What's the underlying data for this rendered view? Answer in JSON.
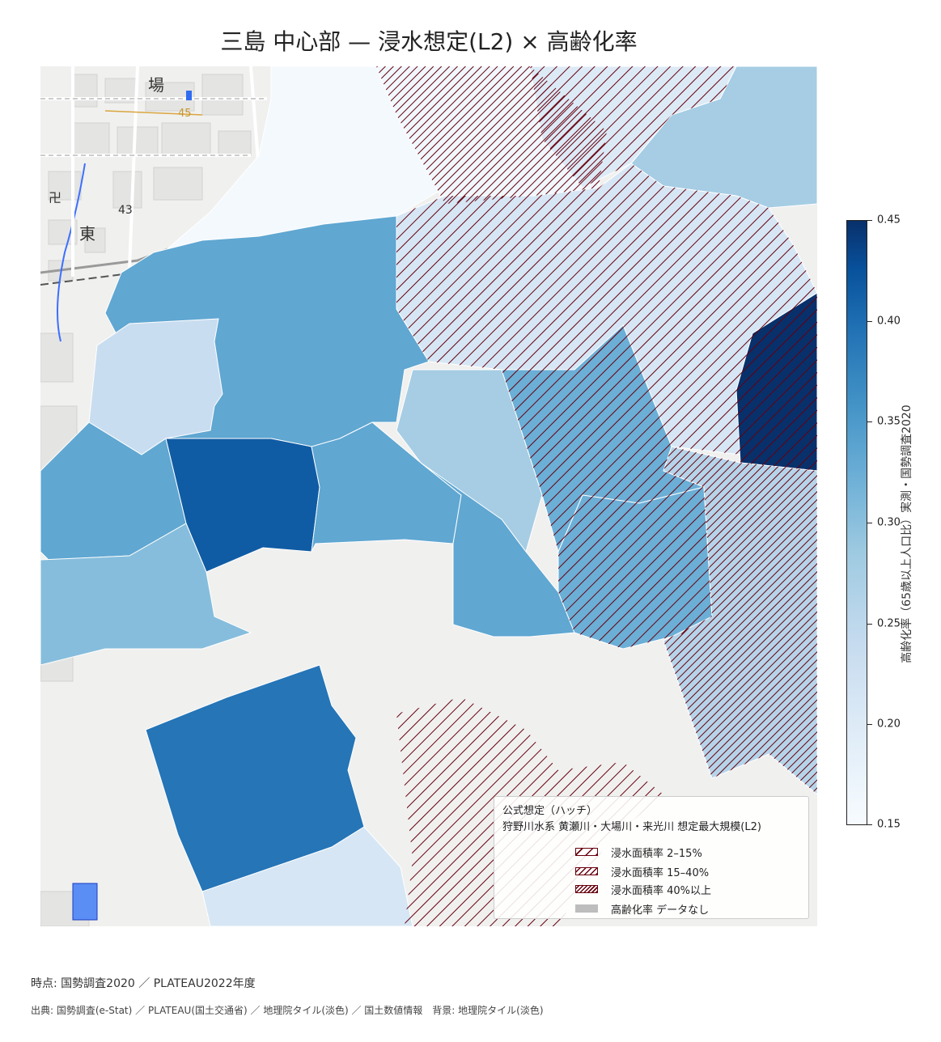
{
  "title": "三島 中心部 — 浸水想定(L2) × 高齢化率",
  "map": {
    "basemap_labels": [
      "場",
      "45",
      "43",
      "卍",
      "東"
    ],
    "regions": [
      {
        "name": "north-blank",
        "aging_rate": 0.155,
        "flood": "none"
      },
      {
        "name": "ne-blue",
        "aging_rate": 0.255,
        "flood": "none"
      },
      {
        "name": "north-hatched-dark",
        "aging_rate": 0.16,
        "flood": "40%以上"
      },
      {
        "name": "north-hatched-light",
        "aging_rate": 0.19,
        "flood": "15-40%"
      },
      {
        "name": "north-hatched-mid",
        "aging_rate": 0.2,
        "flood": "15-40%"
      },
      {
        "name": "east-dark",
        "aging_rate": 0.45,
        "flood": "15-40%"
      },
      {
        "name": "center-large",
        "aging_rate": 0.31,
        "flood": "none"
      },
      {
        "name": "west-light",
        "aging_rate": 0.22,
        "flood": "none"
      },
      {
        "name": "center-light",
        "aging_rate": 0.255,
        "flood": "none"
      },
      {
        "name": "center-hatched",
        "aging_rate": 0.3,
        "flood": "15-40%"
      },
      {
        "name": "west-mid",
        "aging_rate": 0.31,
        "flood": "none"
      },
      {
        "name": "center-dark",
        "aging_rate": 0.4,
        "flood": "none"
      },
      {
        "name": "center-mid",
        "aging_rate": 0.31,
        "flood": "none"
      },
      {
        "name": "center-mid2",
        "aging_rate": 0.31,
        "flood": "none"
      },
      {
        "name": "east-mid",
        "aging_rate": 0.3,
        "flood": "15-40%"
      },
      {
        "name": "east-hatched-dense",
        "aging_rate": 0.24,
        "flood": "40%以上"
      },
      {
        "name": "center-south",
        "aging_rate": 0.28,
        "flood": "none"
      },
      {
        "name": "south-dark",
        "aging_rate": 0.37,
        "flood": "none"
      },
      {
        "name": "south-light",
        "aging_rate": 0.2,
        "flood": "none"
      }
    ]
  },
  "colorbar": {
    "label": "高齢化率（65歳以上人口比）実測・国勢調査2020",
    "min": 0.15,
    "max": 0.45,
    "ticks": [
      "0.45",
      "0.40",
      "0.35",
      "0.30",
      "0.25",
      "0.20",
      "0.15"
    ],
    "colors": [
      "#f7fbff",
      "#deebf7",
      "#c6dbef",
      "#9ecae1",
      "#6baed6",
      "#4292c6",
      "#2171b5",
      "#08519c",
      "#08306b"
    ]
  },
  "legend": {
    "title": "公式想定（ハッチ）",
    "subtitle": "狩野川水系 黄瀬川・大場川・来光川 想定最大規模(L2)",
    "items": [
      {
        "label": "浸水面積率 2–15%",
        "pattern": "sparse"
      },
      {
        "label": "浸水面積率 15–40%",
        "pattern": "medium"
      },
      {
        "label": "浸水面積率 40%以上",
        "pattern": "dense"
      },
      {
        "label": "高齢化率 データなし",
        "pattern": "gray"
      }
    ],
    "hatch_color": "#67000d",
    "nodata_color": "#bdbdbd"
  },
  "footer": {
    "timepoint": "時点: 国勢調査2020 ／ PLATEAU2022年度",
    "source": "出典: 国勢調査(e-Stat) ／ PLATEAU(国土交通省) ／ 地理院タイル(淡色) ／ 国土数値情報　背景: 地理院タイル(淡色)"
  }
}
